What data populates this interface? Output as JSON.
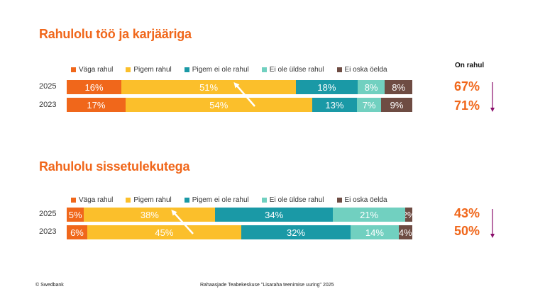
{
  "colors": {
    "vaga_rahul": "#f0671b",
    "pigem_rahul": "#fbbf2b",
    "pigem_ei": "#1a99a6",
    "ei_ole": "#71d0c0",
    "ei_oska": "#6e4c43",
    "arrow": "#8a0e6b"
  },
  "legend": [
    "Väga rahul",
    "Pigem rahul",
    "Pigem ei ole rahul",
    "Ei ole üldse rahul",
    "Ei oska öelda"
  ],
  "on_rahul_label": "On rahul",
  "chart_data": [
    {
      "type": "bar",
      "title": "Rahulolu töö ja karjääriga",
      "stacked": true,
      "orientation": "horizontal",
      "categories": [
        "2025",
        "2023"
      ],
      "series": [
        {
          "name": "Väga rahul",
          "values": [
            16,
            17
          ],
          "labels": [
            "16%",
            "17%"
          ]
        },
        {
          "name": "Pigem rahul",
          "values": [
            51,
            54
          ],
          "labels": [
            "51%",
            "54%"
          ]
        },
        {
          "name": "Pigem ei ole rahul",
          "values": [
            18,
            13
          ],
          "labels": [
            "18%",
            "13%"
          ]
        },
        {
          "name": "Ei ole üldse rahul",
          "values": [
            8,
            7
          ],
          "labels": [
            "8%",
            "7%"
          ]
        },
        {
          "name": "Ei oska öelda",
          "values": [
            8,
            9
          ],
          "labels": [
            "8%",
            "9%"
          ]
        }
      ],
      "on_rahul": [
        "67%",
        "71%"
      ]
    },
    {
      "type": "bar",
      "title": "Rahulolu sissetulekutega",
      "stacked": true,
      "orientation": "horizontal",
      "categories": [
        "2025",
        "2023"
      ],
      "series": [
        {
          "name": "Väga rahul",
          "values": [
            5,
            6
          ],
          "labels": [
            "5%",
            "6%"
          ]
        },
        {
          "name": "Pigem rahul",
          "values": [
            38,
            45
          ],
          "labels": [
            "38%",
            "45%"
          ]
        },
        {
          "name": "Pigem ei ole rahul",
          "values": [
            34,
            32
          ],
          "labels": [
            "34%",
            "32%"
          ]
        },
        {
          "name": "Ei ole üldse rahul",
          "values": [
            21,
            14
          ],
          "labels": [
            "21%",
            "14%"
          ]
        },
        {
          "name": "Ei oska öelda",
          "values": [
            2,
            4
          ],
          "labels": [
            "2%",
            "4%"
          ]
        }
      ],
      "on_rahul": [
        "43%",
        "50%"
      ]
    }
  ],
  "footer": {
    "left": "© Swedbank",
    "center": "Rahaasjade Teabekeskuse \"Lisaraha teenimise uuring\" 2025"
  }
}
